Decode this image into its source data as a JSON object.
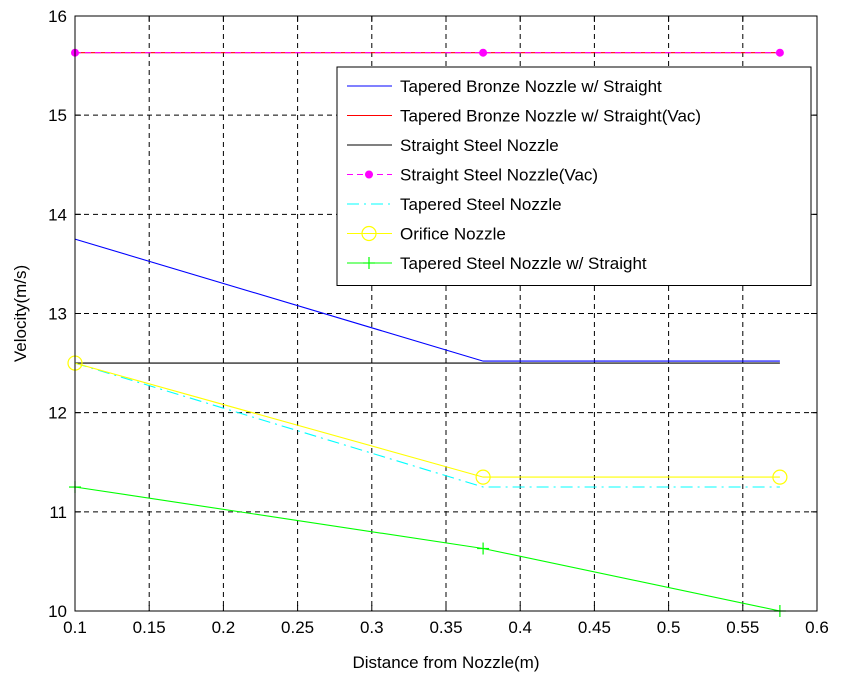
{
  "chart_data": {
    "type": "line",
    "title": "",
    "xlabel": "Distance from Nozzle(m)",
    "ylabel": "Velocity(m/s)",
    "xlim": [
      0.1,
      0.6
    ],
    "ylim": [
      10,
      16
    ],
    "xticks": [
      "0.1",
      "0.15",
      "0.2",
      "0.25",
      "0.3",
      "0.35",
      "0.4",
      "0.45",
      "0.5",
      "0.55",
      "0.6"
    ],
    "yticks": [
      "10",
      "11",
      "12",
      "13",
      "14",
      "15",
      "16"
    ],
    "grid": true,
    "legend_position": "top-right",
    "series": [
      {
        "name": "Tapered Bronze Nozzle w/ Straight",
        "color": "#0000ff",
        "line": "solid",
        "marker": "none",
        "x": [
          0.1,
          0.375,
          0.575
        ],
        "y": [
          13.75,
          12.52,
          12.52
        ]
      },
      {
        "name": "Tapered Bronze Nozzle w/ Straight(Vac)",
        "color": "#ff0000",
        "line": "solid",
        "marker": "none",
        "x": [
          0.1,
          0.375,
          0.575
        ],
        "y": [
          15.63,
          15.63,
          15.63
        ]
      },
      {
        "name": "Straight Steel Nozzle",
        "color": "#000000",
        "line": "solid",
        "marker": "none",
        "x": [
          0.1,
          0.375,
          0.575
        ],
        "y": [
          12.5,
          12.5,
          12.5
        ]
      },
      {
        "name": "Straight Steel Nozzle(Vac)",
        "color": "#ff00ff",
        "line": "dashed",
        "marker": "dot",
        "x": [
          0.1,
          0.375,
          0.575
        ],
        "y": [
          15.63,
          15.63,
          15.63
        ]
      },
      {
        "name": "Tapered Steel Nozzle",
        "color": "#00ffff",
        "line": "dashdot",
        "marker": "none",
        "x": [
          0.1,
          0.375,
          0.575
        ],
        "y": [
          12.5,
          11.25,
          11.25
        ]
      },
      {
        "name": "Orifice Nozzle",
        "color": "#ffff00",
        "line": "solid",
        "marker": "circle",
        "x": [
          0.1,
          0.375,
          0.575
        ],
        "y": [
          12.5,
          11.35,
          11.35
        ]
      },
      {
        "name": "Tapered Steel Nozzle w/ Straight",
        "color": "#00ff00",
        "line": "solid",
        "marker": "plus",
        "x": [
          0.1,
          0.375,
          0.575
        ],
        "y": [
          11.25,
          10.63,
          10.0
        ]
      }
    ]
  }
}
